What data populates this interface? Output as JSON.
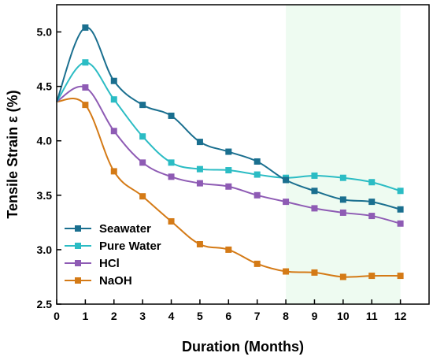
{
  "chart_data": {
    "type": "line",
    "title": "",
    "xlabel": "Duration (Months)",
    "ylabel": "Tensile Strain ε (%)",
    "xlim": [
      0,
      13
    ],
    "ylim": [
      2.5,
      5.25
    ],
    "xticks": [
      0,
      1,
      2,
      3,
      4,
      5,
      6,
      7,
      8,
      9,
      10,
      11,
      12
    ],
    "yticks": [
      2.5,
      3.0,
      3.5,
      4.0,
      4.5,
      5.0
    ],
    "ytick_labels": [
      "2.5",
      "3.0",
      "3.5",
      "4.0",
      "4.5",
      "5.0"
    ],
    "grid": false,
    "legend_position": "bottom-left",
    "shaded_region": {
      "x_start": 8,
      "x_end": 12,
      "color": "#eefbf1"
    },
    "series": [
      {
        "name": "Seawater",
        "color": "#1a6f8f",
        "x": [
          0,
          1,
          2,
          3,
          4,
          5,
          6,
          7,
          8,
          9,
          10,
          11,
          12
        ],
        "values": [
          4.36,
          5.04,
          4.55,
          4.33,
          4.23,
          3.99,
          3.9,
          3.81,
          3.64,
          3.54,
          3.46,
          3.44,
          3.37
        ]
      },
      {
        "name": "Pure Water",
        "color": "#2bbcc4",
        "x": [
          0,
          1,
          2,
          3,
          4,
          5,
          6,
          7,
          8,
          9,
          10,
          11,
          12
        ],
        "values": [
          4.36,
          4.72,
          4.38,
          4.04,
          3.8,
          3.74,
          3.73,
          3.69,
          3.66,
          3.68,
          3.66,
          3.62,
          3.54
        ]
      },
      {
        "name": "HCl",
        "color": "#8e5bb4",
        "x": [
          0,
          1,
          2,
          3,
          4,
          5,
          6,
          7,
          8,
          9,
          10,
          11,
          12
        ],
        "values": [
          4.36,
          4.49,
          4.09,
          3.8,
          3.67,
          3.61,
          3.58,
          3.5,
          3.44,
          3.38,
          3.34,
          3.31,
          3.24
        ]
      },
      {
        "name": "NaOH",
        "color": "#d47a16",
        "x": [
          0,
          1,
          2,
          3,
          4,
          5,
          6,
          7,
          8,
          9,
          10,
          11,
          12
        ],
        "values": [
          4.36,
          4.33,
          3.72,
          3.49,
          3.26,
          3.05,
          3.0,
          2.87,
          2.8,
          2.79,
          2.75,
          2.76,
          2.76
        ]
      }
    ]
  }
}
